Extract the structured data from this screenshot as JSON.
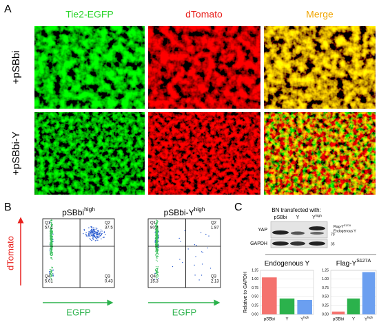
{
  "panel_a": {
    "label": "A",
    "columns": [
      "Tie2-EGFP",
      "dTomato",
      "Merge"
    ],
    "rows": [
      "+pSBbi",
      "+pSBbi-Y"
    ]
  },
  "panel_b": {
    "label": "B",
    "y_label": "dTomato",
    "x_label": "EGFP",
    "plots": [
      {
        "title": {
          "text": "pSBbi",
          "sup": "high"
        },
        "quadrants": [
          {
            "name": "Q1",
            "value": "57.1"
          },
          {
            "name": "Q2",
            "value": "37.5"
          },
          {
            "name": "Q3",
            "value": "0.43"
          },
          {
            "name": "Q4",
            "value": "5.01"
          }
        ]
      },
      {
        "title": {
          "text": "pSBbi-Y",
          "sup": "high"
        },
        "quadrants": [
          {
            "name": "Q1",
            "value": "80.7"
          },
          {
            "name": "Q2",
            "value": "1.87"
          },
          {
            "name": "Q3",
            "value": "2.13"
          },
          {
            "name": "Q4",
            "value": "15.3"
          }
        ]
      }
    ]
  },
  "panel_c": {
    "label": "C",
    "blot_heading": "BN transfected with:",
    "lanes": [
      "pSBbi",
      "Y",
      {
        "text": "Y",
        "sup": "high"
      }
    ],
    "rows": [
      "YAP",
      "GAPDH"
    ],
    "markers": [
      "70",
      "35"
    ],
    "band_labels": [
      {
        "text": "Flag-Y",
        "sup": "S127A"
      },
      "Endogenous Y"
    ],
    "y_label": "Relative to GAPDH"
  },
  "chart_data": [
    {
      "type": "bar",
      "title": {
        "text": "Endogenous Y"
      },
      "categories": [
        "pSBbi",
        "Y",
        {
          "text": "Y",
          "sup": "high"
        }
      ],
      "values": [
        1.05,
        0.45,
        0.41
      ],
      "colors": [
        "#f4726e",
        "#2bb24c",
        "#6b9ff0"
      ],
      "ylim": [
        0,
        1.25
      ],
      "yticks": [
        {
          "value": 0,
          "label": "0.00"
        },
        {
          "value": 0.25,
          "label": "0.25"
        },
        {
          "value": 0.5,
          "label": "0.50"
        },
        {
          "value": 0.75,
          "label": "0.75"
        },
        {
          "value": 1,
          "label": "1.00"
        },
        {
          "value": 1.25,
          "label": "1.25"
        }
      ],
      "grid": true
    },
    {
      "type": "bar",
      "title": {
        "text": "Flag-Y",
        "sup": "S127A"
      },
      "categories": [
        "pSBbi",
        "Y",
        {
          "text": "Y",
          "sup": "high"
        }
      ],
      "values": [
        0.08,
        0.45,
        1.2
      ],
      "colors": [
        "#f4726e",
        "#2bb24c",
        "#6b9ff0"
      ],
      "ylim": [
        0,
        1.25
      ],
      "yticks": [
        {
          "value": 0,
          "label": "0.00"
        },
        {
          "value": 0.25,
          "label": "0.25"
        },
        {
          "value": 0.5,
          "label": "0.50"
        },
        {
          "value": 0.75,
          "label": "0.75"
        },
        {
          "value": 1,
          "label": "1.00"
        },
        {
          "value": 1.25,
          "label": "1.25"
        }
      ],
      "grid": true
    }
  ]
}
